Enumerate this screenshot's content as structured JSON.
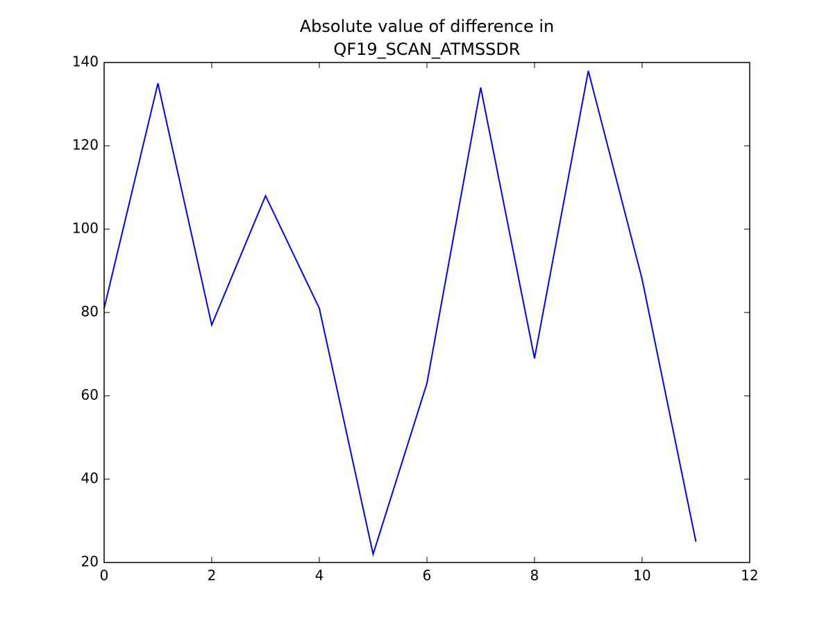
{
  "chart_data": {
    "type": "line",
    "title": [
      "Absolute value of difference in",
      "QF19_SCAN_ATMSSDR"
    ],
    "x": [
      0,
      1,
      2,
      3,
      4,
      5,
      6,
      7,
      8,
      9,
      10,
      11
    ],
    "series": [
      {
        "color": "#0000ff",
        "values": [
          81,
          135,
          77,
          108,
          81,
          22,
          63,
          134,
          69,
          138,
          88,
          25
        ]
      }
    ],
    "xlim": [
      0,
      12
    ],
    "xticks": [
      0,
      2,
      4,
      6,
      8,
      10,
      12
    ],
    "ylim": [
      20,
      140
    ],
    "yticks": [
      20,
      40,
      60,
      80,
      100,
      120,
      140
    ],
    "grid": false
  }
}
